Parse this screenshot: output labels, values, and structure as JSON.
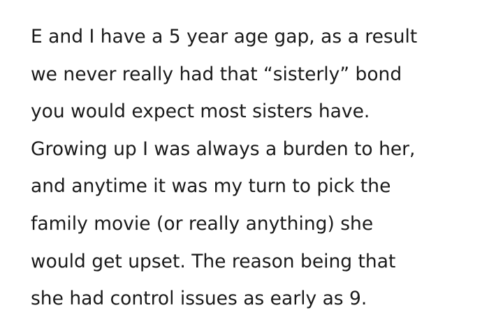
{
  "paragraph": {
    "lines": [
      "E and I have a 5 year age gap, as a result",
      "we never really had that “sisterly” bond",
      "you would expect most sisters have.",
      "Growing up I was always a burden to her,",
      "and anytime it was my turn to pick the",
      "family movie (or really anything) she",
      "would get upset. The reason being that",
      "she had control issues as early as 9."
    ]
  }
}
